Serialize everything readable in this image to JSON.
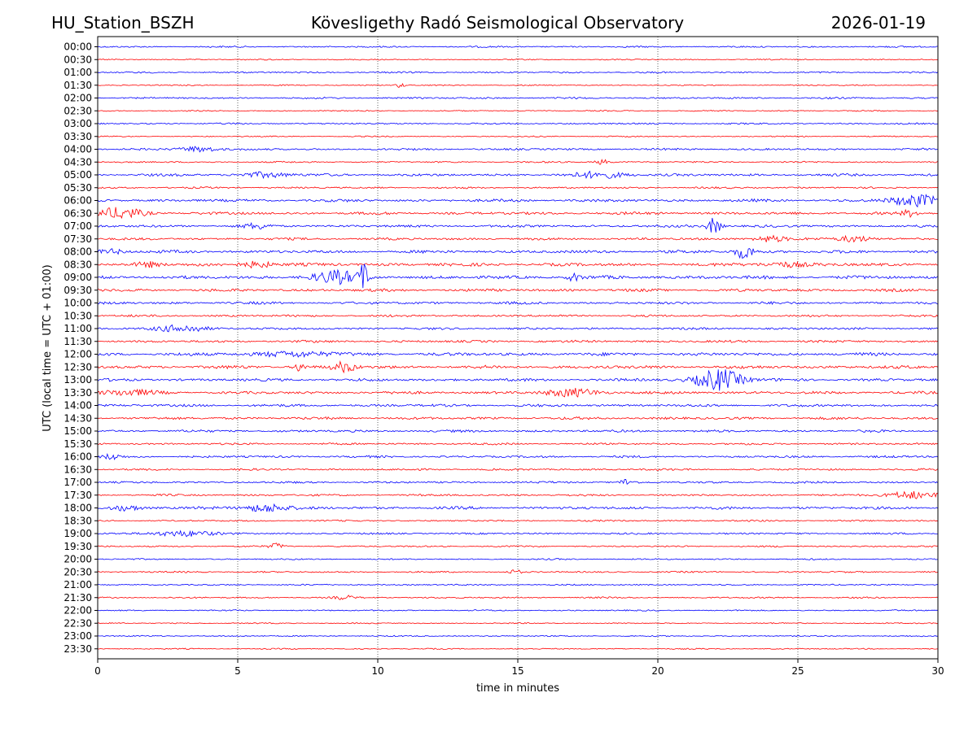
{
  "header": {
    "station": "HU_Station_BSZH",
    "observatory": "Kövesligethy Radó Seismological Observatory",
    "date": "2026-01-19"
  },
  "chart_data": {
    "type": "line",
    "title": "Kövesligethy Radó Seismological Observatory",
    "xlabel": "time in minutes",
    "ylabel": "UTC (local time = UTC + 01:00)",
    "xlim": [
      0,
      30
    ],
    "x_ticks": [
      0,
      5,
      10,
      15,
      20,
      25,
      30
    ],
    "x_grid": "dotted vertical lines every 5 minutes",
    "row_labels": [
      "00:00",
      "00:30",
      "01:00",
      "01:30",
      "02:00",
      "02:30",
      "03:00",
      "03:30",
      "04:00",
      "04:30",
      "05:00",
      "05:30",
      "06:00",
      "06:30",
      "07:00",
      "07:30",
      "08:00",
      "08:30",
      "09:00",
      "09:30",
      "10:00",
      "10:30",
      "11:00",
      "11:30",
      "12:00",
      "12:30",
      "13:00",
      "13:30",
      "14:00",
      "14:30",
      "15:00",
      "15:30",
      "16:00",
      "16:30",
      "17:00",
      "17:30",
      "18:00",
      "18:30",
      "19:00",
      "19:30",
      "20:00",
      "20:30",
      "21:00",
      "21:30",
      "22:00",
      "22:30",
      "23:00",
      "23:30"
    ],
    "trace_colors": [
      "#0000ff",
      "#ff0000"
    ],
    "noise_level": [
      0.8,
      0.6,
      0.8,
      0.6,
      0.9,
      0.6,
      0.8,
      0.6,
      1.0,
      0.8,
      1.3,
      0.9,
      1.4,
      1.4,
      1.3,
      1.2,
      1.5,
      1.6,
      1.7,
      1.4,
      1.3,
      1.1,
      1.1,
      1.2,
      1.6,
      1.6,
      1.4,
      1.4,
      1.3,
      1.3,
      1.2,
      1.0,
      1.1,
      1.0,
      1.0,
      1.0,
      1.4,
      0.8,
      0.9,
      0.8,
      0.7,
      0.8,
      0.7,
      0.8,
      0.7,
      0.6,
      0.6,
      0.6
    ],
    "events": [
      {
        "row": "01:30",
        "minute": 10.8,
        "amplitude": 3,
        "duration": 0.2
      },
      {
        "row": "04:00",
        "minute": 3.6,
        "amplitude": 3.5,
        "duration": 1.2
      },
      {
        "row": "04:30",
        "minute": 18.0,
        "amplitude": 3,
        "duration": 0.4
      },
      {
        "row": "05:00",
        "minute": 6.0,
        "amplitude": 3,
        "duration": 1.5
      },
      {
        "row": "05:00",
        "minute": 18.0,
        "amplitude": 3.5,
        "duration": 1.8
      },
      {
        "row": "06:00",
        "minute": 29.2,
        "amplitude": 7,
        "duration": 1.6
      },
      {
        "row": "06:30",
        "minute": 0.8,
        "amplitude": 6,
        "duration": 1.6
      },
      {
        "row": "06:30",
        "minute": 29.0,
        "amplitude": 3.5,
        "duration": 0.5
      },
      {
        "row": "07:00",
        "minute": 22.0,
        "amplitude": 10,
        "duration": 0.4
      },
      {
        "row": "07:00",
        "minute": 5.7,
        "amplitude": 3,
        "duration": 0.8
      },
      {
        "row": "07:30",
        "minute": 24.0,
        "amplitude": 4,
        "duration": 1.0
      },
      {
        "row": "07:30",
        "minute": 27.0,
        "amplitude": 4,
        "duration": 1.0
      },
      {
        "row": "08:00",
        "minute": 23.1,
        "amplitude": 8,
        "duration": 0.6
      },
      {
        "row": "08:00",
        "minute": 0.5,
        "amplitude": 3,
        "duration": 0.8
      },
      {
        "row": "08:30",
        "minute": 5.7,
        "amplitude": 4,
        "duration": 1.0
      },
      {
        "row": "08:30",
        "minute": 1.8,
        "amplitude": 3,
        "duration": 0.8
      },
      {
        "row": "08:30",
        "minute": 24.5,
        "amplitude": 3,
        "duration": 1.5
      },
      {
        "row": "09:00",
        "minute": 8.5,
        "amplitude": 7,
        "duration": 1.6
      },
      {
        "row": "09:00",
        "minute": 9.5,
        "amplitude": 16,
        "duration": 0.2
      },
      {
        "row": "09:00",
        "minute": 17.0,
        "amplitude": 4,
        "duration": 0.4
      },
      {
        "row": "11:00",
        "minute": 3.0,
        "amplitude": 3.5,
        "duration": 2.0
      },
      {
        "row": "12:00",
        "minute": 7.0,
        "amplitude": 3,
        "duration": 2.5
      },
      {
        "row": "12:30",
        "minute": 8.8,
        "amplitude": 6,
        "duration": 0.7
      },
      {
        "row": "12:30",
        "minute": 7.2,
        "amplitude": 5,
        "duration": 0.3
      },
      {
        "row": "13:00",
        "minute": 22.2,
        "amplitude": 13,
        "duration": 1.5
      },
      {
        "row": "13:30",
        "minute": 17.0,
        "amplitude": 4.5,
        "duration": 1.8
      },
      {
        "row": "13:30",
        "minute": 1.0,
        "amplitude": 3,
        "duration": 2.0
      },
      {
        "row": "16:00",
        "minute": 0.5,
        "amplitude": 3,
        "duration": 0.5
      },
      {
        "row": "17:00",
        "minute": 18.9,
        "amplitude": 4,
        "duration": 0.4
      },
      {
        "row": "17:30",
        "minute": 29.0,
        "amplitude": 4.5,
        "duration": 1.6
      },
      {
        "row": "18:00",
        "minute": 6.0,
        "amplitude": 5,
        "duration": 1.4
      },
      {
        "row": "18:00",
        "minute": 1.0,
        "amplitude": 3,
        "duration": 1.0
      },
      {
        "row": "19:00",
        "minute": 3.0,
        "amplitude": 3.5,
        "duration": 2.0
      },
      {
        "row": "19:30",
        "minute": 6.4,
        "amplitude": 3.5,
        "duration": 0.4
      },
      {
        "row": "20:30",
        "minute": 14.9,
        "amplitude": 3,
        "duration": 0.3
      },
      {
        "row": "21:30",
        "minute": 8.8,
        "amplitude": 2.5,
        "duration": 0.5
      }
    ]
  }
}
